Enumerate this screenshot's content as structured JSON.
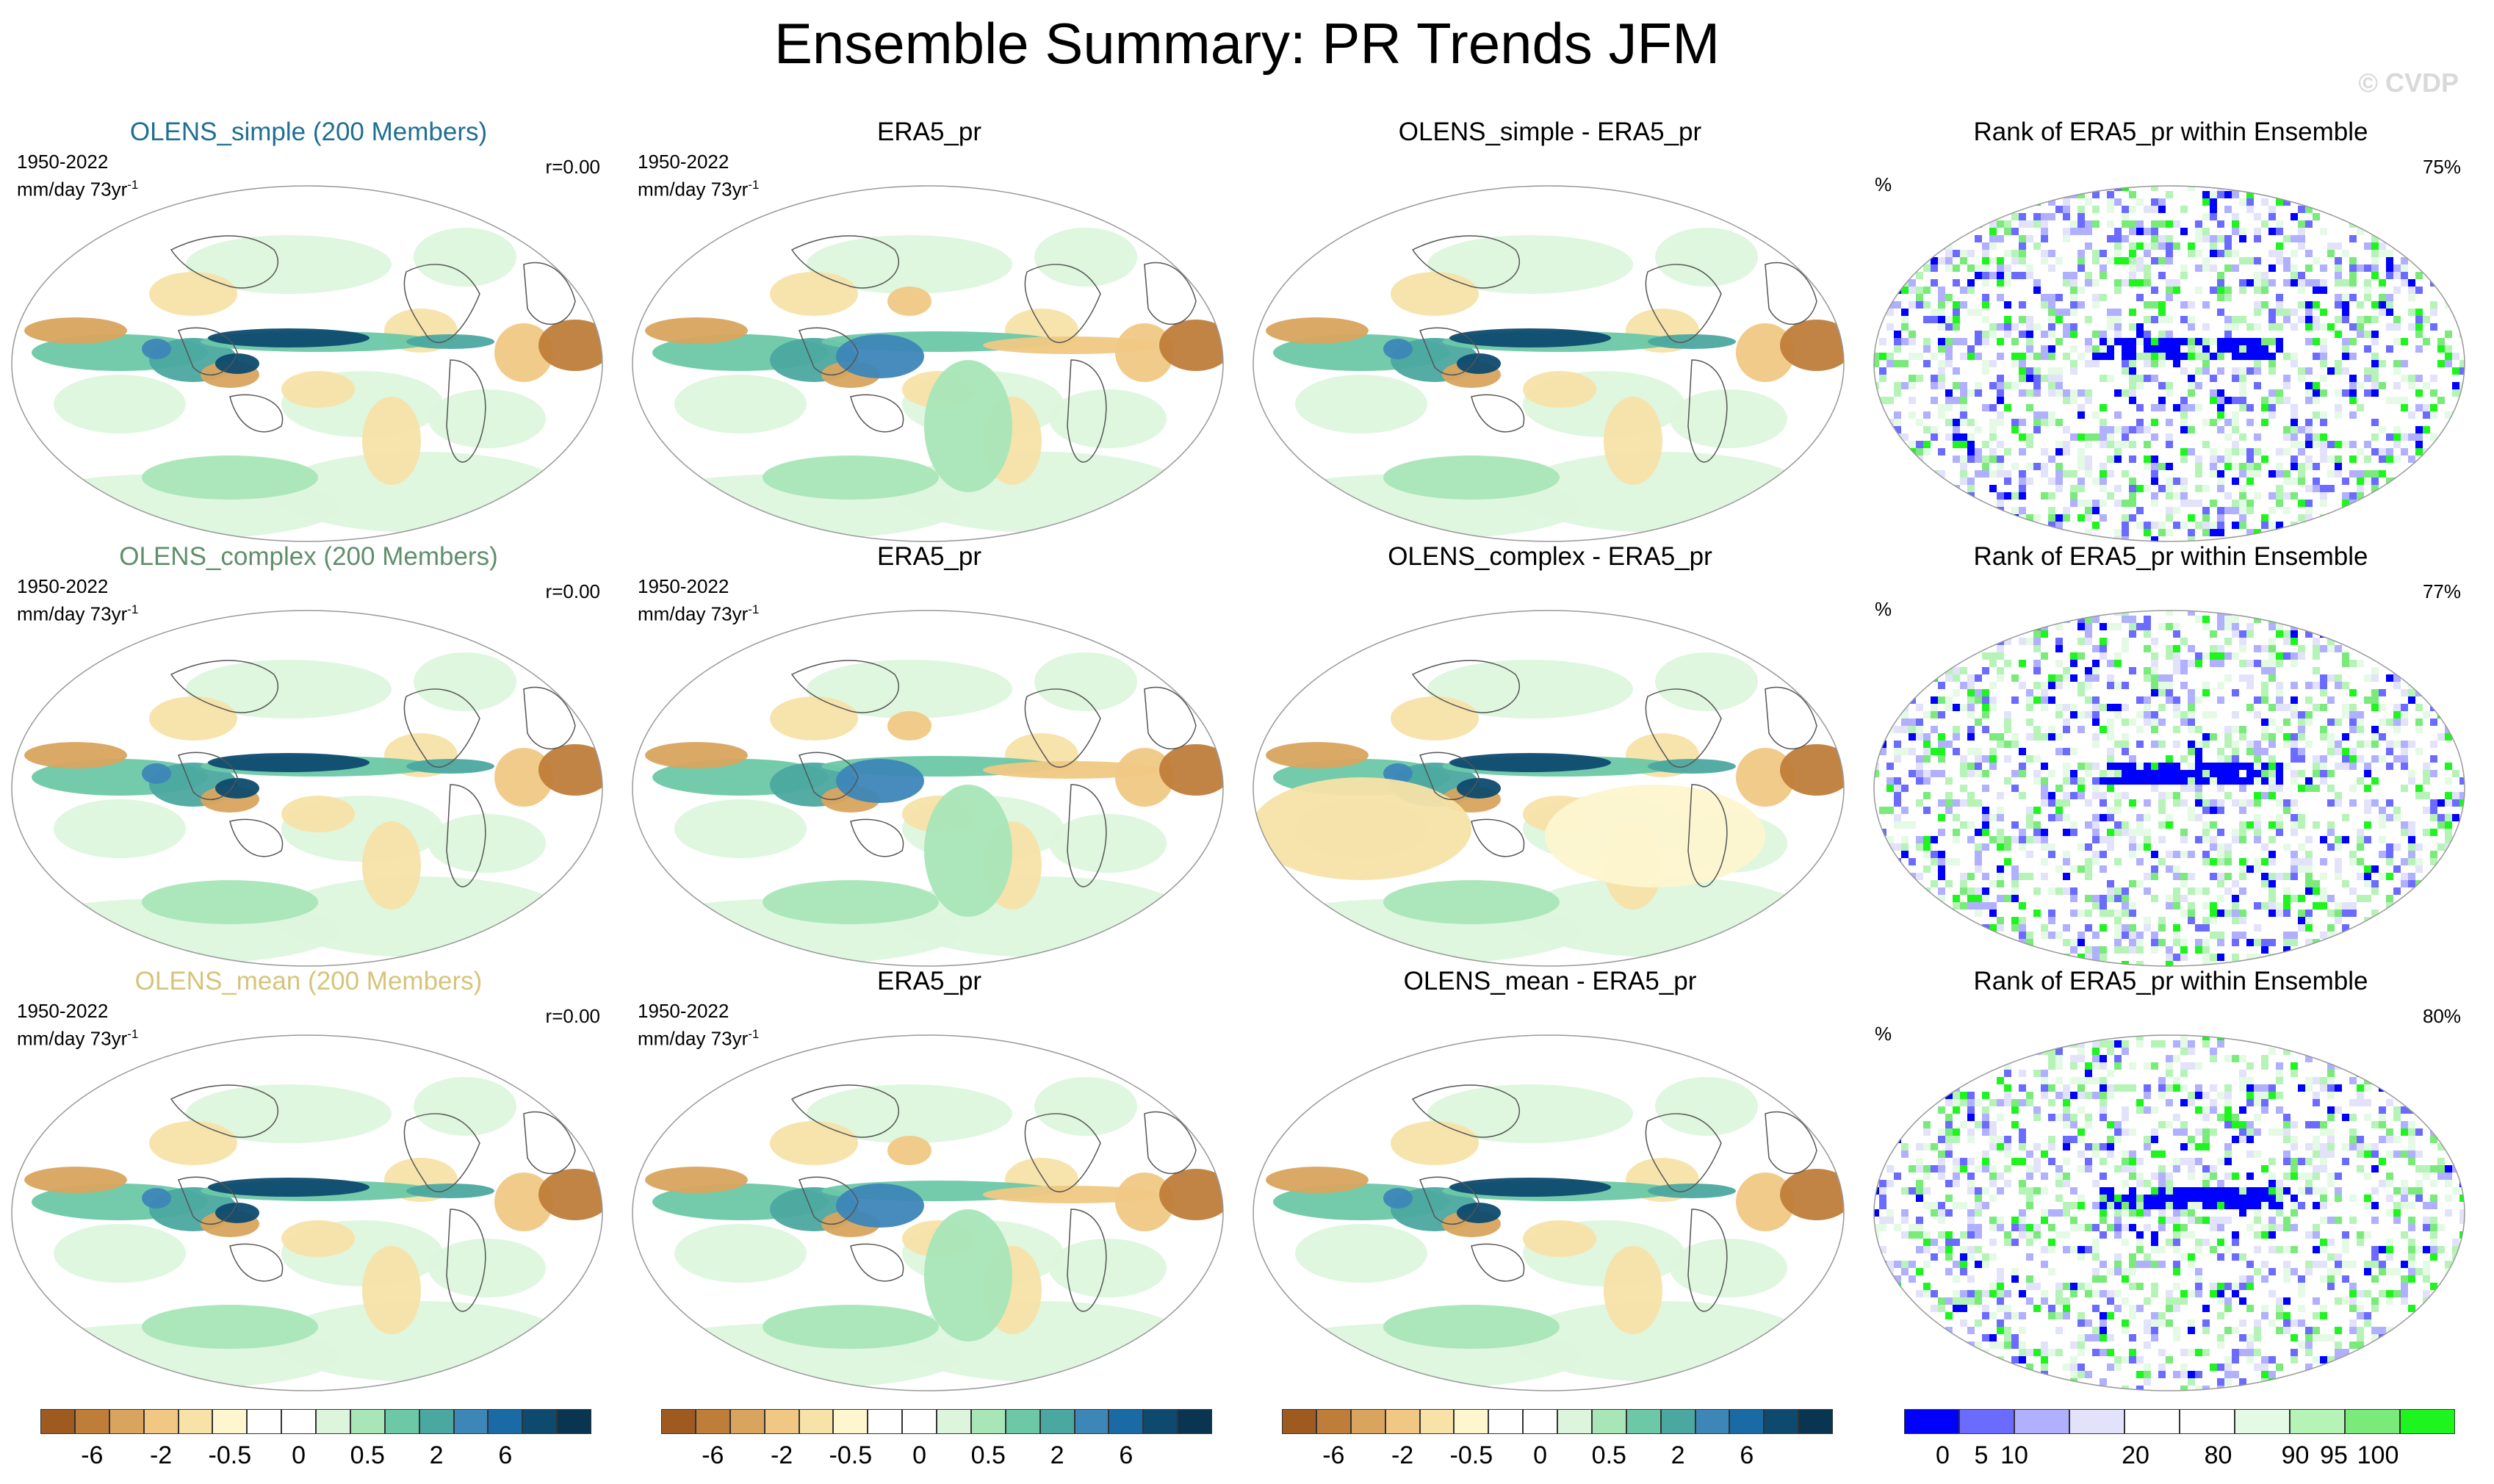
{
  "title": "Ensemble Summary: PR Trends JFM",
  "copyright": "© CVDP",
  "period": "1950-2022",
  "units": "mm/day 73yr",
  "units_sup": "-1",
  "rows": [
    {
      "model_title": "OLENS_simple (200 Members)",
      "model_color": "#1f6f94",
      "corr": "r=0.00",
      "obs_title": "ERA5_pr",
      "diff_title": "OLENS_simple - ERA5_pr",
      "rank_title": "Rank of ERA5_pr within Ensemble",
      "rank_pct_label": "%",
      "rank_pct": "75%"
    },
    {
      "model_title": "OLENS_complex (200 Members)",
      "model_color": "#5f8f6a",
      "corr": "r=0.00",
      "obs_title": "ERA5_pr",
      "diff_title": "OLENS_complex - ERA5_pr",
      "rank_title": "Rank of ERA5_pr within Ensemble",
      "rank_pct_label": "%",
      "rank_pct": "77%"
    },
    {
      "model_title": "OLENS_mean (200 Members)",
      "model_color": "#d6c47a",
      "corr": "r=0.00",
      "obs_title": "ERA5_pr",
      "diff_title": "OLENS_mean - ERA5_pr",
      "rank_title": "Rank of ERA5_pr within Ensemble",
      "rank_pct_label": "%",
      "rank_pct": "80%"
    }
  ],
  "trend_colorbar": {
    "colors": [
      "#9e5a1f",
      "#bf7d3a",
      "#d9a45e",
      "#f0c884",
      "#f7e2a8",
      "#fdf6cf",
      "#ffffff",
      "#ffffff",
      "#ddf5dd",
      "#a8e6b8",
      "#6cc8a6",
      "#4ba8a0",
      "#3d86b8",
      "#1a6aa6",
      "#0d4a6e",
      "#0a3550"
    ],
    "labels": [
      "-6",
      "-2",
      "-0.5",
      "0",
      "0.5",
      "2",
      "6"
    ],
    "label_indices": [
      1,
      3,
      5,
      7,
      9,
      11,
      13
    ]
  },
  "rank_colorbar": {
    "colors": [
      "#0000ff",
      "#6b6bff",
      "#b0b0ff",
      "#e2e2fb",
      "#ffffff",
      "#ffffff",
      "#e4fae4",
      "#b6f3b6",
      "#7aea7a",
      "#1ef51e"
    ],
    "labels": [
      "0",
      "5",
      "10",
      "20",
      "80",
      "90",
      "95",
      "100"
    ],
    "label_positions": [
      0.07,
      0.14,
      0.2,
      0.42,
      0.57,
      0.71,
      0.78,
      0.86
    ]
  }
}
